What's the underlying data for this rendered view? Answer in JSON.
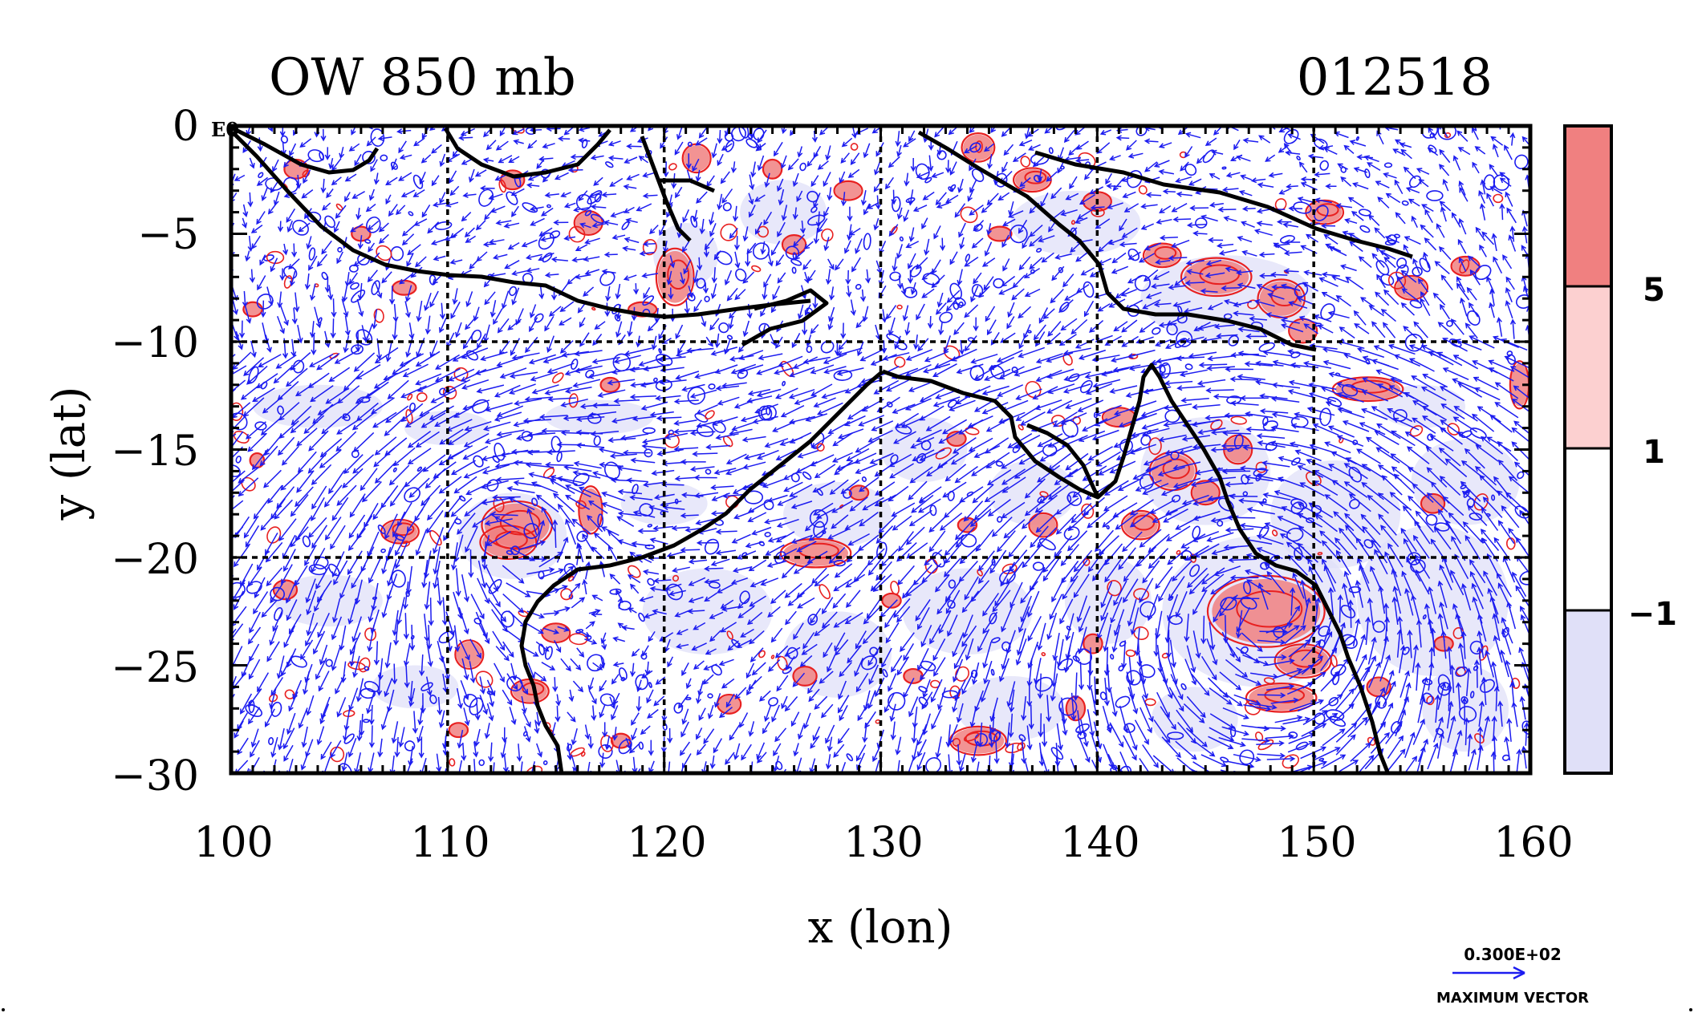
{
  "chart_data": {
    "type": "vector-contour-map",
    "title_left": "OW 850 mb",
    "title_right": "012518",
    "corner_label": "E0",
    "xlabel": "x (lon)",
    "ylabel": "y (lat)",
    "xlim": [
      100,
      160
    ],
    "ylim": [
      -30,
      0
    ],
    "x_ticks": [
      "100",
      "110",
      "120",
      "130",
      "140",
      "150",
      "160"
    ],
    "y_ticks": [
      "0",
      "−5",
      "−10",
      "−15",
      "−20",
      "−25",
      "−30"
    ],
    "grid_lon": [
      110,
      120,
      130,
      140,
      150
    ],
    "grid_lat": [
      -10,
      -20
    ],
    "colorbar": {
      "labels": [
        "5",
        "1",
        "−1"
      ],
      "levels": [
        5,
        1,
        -1
      ],
      "colors": [
        "#f08080",
        "#fcd0d0",
        "#ffffff",
        "#e0e0f8"
      ]
    },
    "vector_key": {
      "value_label": "0.300E+02",
      "caption": "MAXIMUM VECTOR"
    },
    "colors": {
      "vectors": "#1c1cf0",
      "positive_contour": "#e82020",
      "positive_fill": "#f08080",
      "negative_fill": "#e0e0f8",
      "coast": "#000000"
    },
    "centers": [
      {
        "lon": 147.5,
        "lat": -22.5,
        "kind": "cyclonic"
      },
      {
        "lon": 113.0,
        "lat": -19.0,
        "kind": "cyclonic"
      }
    ],
    "red_blobs": [
      [
        113.2,
        -18.5,
        1.5,
        1.0
      ],
      [
        112.8,
        -19.3,
        1.2,
        0.7
      ],
      [
        107.8,
        -18.8,
        0.8,
        0.5
      ],
      [
        116.6,
        -17.8,
        0.5,
        1.0
      ],
      [
        102.5,
        -21.5,
        0.5,
        0.4
      ],
      [
        113.8,
        -26.2,
        0.8,
        0.5
      ],
      [
        115.0,
        -23.5,
        0.6,
        0.4
      ],
      [
        101.2,
        -15.5,
        0.3,
        0.3
      ],
      [
        111.0,
        -24.5,
        0.6,
        0.6
      ],
      [
        127.0,
        -19.8,
        1.5,
        0.6
      ],
      [
        123.0,
        -26.8,
        0.5,
        0.4
      ],
      [
        126.5,
        -25.5,
        0.5,
        0.4
      ],
      [
        134.0,
        -18.5,
        0.4,
        0.3
      ],
      [
        137.5,
        -18.5,
        0.6,
        0.5
      ],
      [
        134.5,
        -28.5,
        1.2,
        0.6
      ],
      [
        139.0,
        -27.0,
        0.4,
        0.5
      ],
      [
        143.5,
        -16.0,
        1.0,
        0.8
      ],
      [
        145.0,
        -17.0,
        0.6,
        0.5
      ],
      [
        146.5,
        -15.0,
        0.6,
        0.6
      ],
      [
        142.0,
        -18.5,
        0.8,
        0.6
      ],
      [
        147.8,
        -22.5,
        2.5,
        1.5
      ],
      [
        149.5,
        -24.8,
        1.2,
        0.7
      ],
      [
        148.5,
        -26.5,
        1.5,
        0.6
      ],
      [
        152.5,
        -12.2,
        1.5,
        0.5
      ],
      [
        159.5,
        -12.0,
        0.4,
        1.0
      ],
      [
        141.0,
        -13.5,
        0.7,
        0.4
      ],
      [
        145.5,
        -7.0,
        1.5,
        0.8
      ],
      [
        148.5,
        -8.0,
        1.0,
        0.8
      ],
      [
        143.0,
        -6.0,
        0.8,
        0.5
      ],
      [
        150.5,
        -4.0,
        0.8,
        0.5
      ],
      [
        154.5,
        -7.5,
        0.7,
        0.5
      ],
      [
        157.0,
        -6.5,
        0.6,
        0.4
      ],
      [
        149.5,
        -9.5,
        0.6,
        0.5
      ],
      [
        134.5,
        -1.0,
        0.7,
        0.6
      ],
      [
        137.0,
        -2.5,
        0.8,
        0.5
      ],
      [
        140.0,
        -3.5,
        0.6,
        0.4
      ],
      [
        120.5,
        -7.0,
        0.8,
        1.2
      ],
      [
        121.5,
        -1.5,
        0.6,
        0.6
      ],
      [
        125.0,
        -2.0,
        0.4,
        0.4
      ],
      [
        128.5,
        -3.0,
        0.6,
        0.4
      ],
      [
        126.0,
        -5.5,
        0.5,
        0.4
      ],
      [
        103.0,
        -2.0,
        0.5,
        0.4
      ],
      [
        106.0,
        -5.0,
        0.4,
        0.3
      ],
      [
        113.0,
        -2.5,
        0.5,
        0.4
      ],
      [
        116.5,
        -4.5,
        0.6,
        0.5
      ],
      [
        119.0,
        -8.5,
        0.6,
        0.3
      ],
      [
        101.0,
        -8.5,
        0.4,
        0.3
      ],
      [
        117.5,
        -12.0,
        0.4,
        0.3
      ],
      [
        108.0,
        -7.5,
        0.5,
        0.3
      ],
      [
        130.5,
        -22.0,
        0.4,
        0.3
      ],
      [
        131.5,
        -25.5,
        0.4,
        0.3
      ],
      [
        139.8,
        -24.0,
        0.4,
        0.4
      ],
      [
        153.0,
        -26.0,
        0.5,
        0.4
      ],
      [
        156.0,
        -24.0,
        0.4,
        0.3
      ],
      [
        155.5,
        -17.5,
        0.5,
        0.4
      ],
      [
        133.5,
        -14.5,
        0.4,
        0.3
      ],
      [
        129.0,
        -17.0,
        0.4,
        0.3
      ],
      [
        135.5,
        -5.0,
        0.5,
        0.3
      ],
      [
        110.5,
        -28.0,
        0.4,
        0.3
      ],
      [
        118.0,
        -28.5,
        0.4,
        0.3
      ]
    ],
    "blue_blobs": [
      [
        104.0,
        -13.0,
        3.0,
        1.0
      ],
      [
        110.0,
        -14.0,
        2.0,
        0.8
      ],
      [
        117.0,
        -13.5,
        2.5,
        0.8
      ],
      [
        104.5,
        -22.0,
        2.5,
        1.2
      ],
      [
        108.5,
        -26.0,
        2.0,
        1.0
      ],
      [
        122.0,
        -22.5,
        3.0,
        2.0
      ],
      [
        128.0,
        -24.5,
        2.5,
        2.0
      ],
      [
        134.0,
        -22.5,
        3.0,
        2.0
      ],
      [
        136.0,
        -27.0,
        2.5,
        1.5
      ],
      [
        140.5,
        -22.0,
        2.0,
        2.0
      ],
      [
        147.5,
        -22.5,
        4.5,
        3.5
      ],
      [
        151.0,
        -18.0,
        3.0,
        2.5
      ],
      [
        155.5,
        -22.0,
        3.5,
        3.5
      ],
      [
        157.0,
        -16.5,
        2.5,
        2.0
      ],
      [
        145.0,
        -16.0,
        3.0,
        2.5
      ],
      [
        137.0,
        -17.0,
        2.0,
        1.5
      ],
      [
        128.0,
        -18.0,
        2.5,
        1.5
      ],
      [
        120.0,
        -17.5,
        2.0,
        1.0
      ],
      [
        113.0,
        -19.0,
        2.5,
        2.0
      ],
      [
        146.0,
        -8.0,
        4.0,
        2.0
      ],
      [
        139.0,
        -4.5,
        3.0,
        1.5
      ],
      [
        125.5,
        -4.0,
        2.0,
        1.5
      ],
      [
        121.0,
        -6.0,
        1.5,
        1.5
      ],
      [
        155.0,
        -13.0,
        2.0,
        1.0
      ],
      [
        132.0,
        -15.0,
        2.0,
        1.5
      ],
      [
        144.5,
        -27.5,
        2.0,
        1.5
      ],
      [
        157.0,
        -27.0,
        2.0,
        2.0
      ]
    ]
  }
}
